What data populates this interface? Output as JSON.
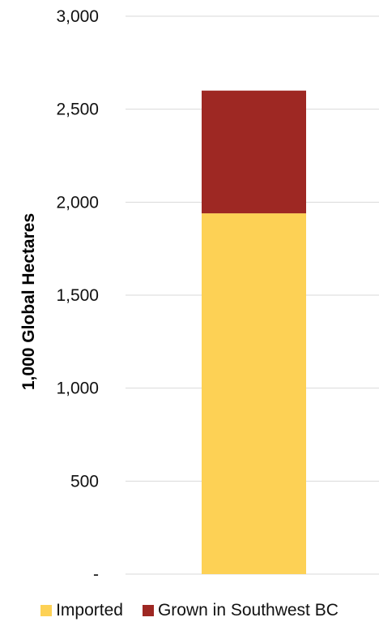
{
  "chart_data": {
    "type": "bar",
    "stacked": true,
    "categories": [
      ""
    ],
    "series": [
      {
        "name": "Imported",
        "values": [
          1940
        ],
        "color": "#fdd155"
      },
      {
        "name": "Grown in Southwest BC",
        "values": [
          660
        ],
        "color": "#9e2823"
      }
    ],
    "ylabel": "1,000 Global Hectares",
    "ylim": [
      0,
      3000
    ],
    "yticks": [
      0,
      500,
      1000,
      1500,
      2000,
      2500,
      3000
    ],
    "ytick_labels": [
      "-",
      "500",
      "1,000",
      "1,500",
      "2,000",
      "2,500",
      "3,000"
    ],
    "grid": true,
    "legend_position": "bottom"
  }
}
